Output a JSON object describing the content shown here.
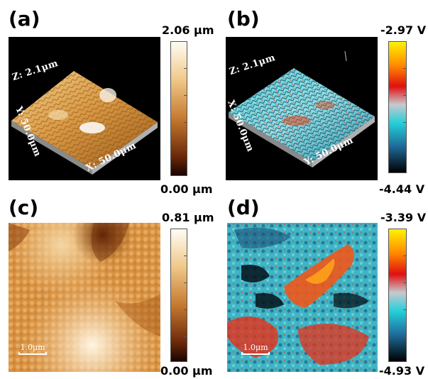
{
  "panels": {
    "a": {
      "label": "(a)",
      "z_label": "Z: 2.1μm",
      "y_label": "Y: 50.0μm",
      "x_label": "X: 50.0μm",
      "scale_max": "2.06 μm",
      "scale_min": "0.00 μm"
    },
    "b": {
      "label": "(b)",
      "z_label": "Z: 2.1μm",
      "x_label": "X: 50.0μm",
      "y_label": "Y: 50.0μm",
      "scale_max": "-2.97 V",
      "scale_min": "-4.44 V"
    },
    "c": {
      "label": "(c)",
      "scalebar": "1.0μm",
      "scale_max": "0.81 μm",
      "scale_min": "0.00 μm"
    },
    "d": {
      "label": "(d)",
      "scalebar": "1.0μm",
      "scale_max": "-3.39 V",
      "scale_min": "-4.93 V"
    }
  },
  "colormaps": {
    "height": [
      "#fefcf4",
      "#f1c98a",
      "#c4782e",
      "#6e2b0a",
      "#1a0300"
    ],
    "potential": [
      "#fff200",
      "#ff8a00",
      "#e01010",
      "#c8c8d0",
      "#24d0d8",
      "#1f6b9a",
      "#000000"
    ]
  }
}
